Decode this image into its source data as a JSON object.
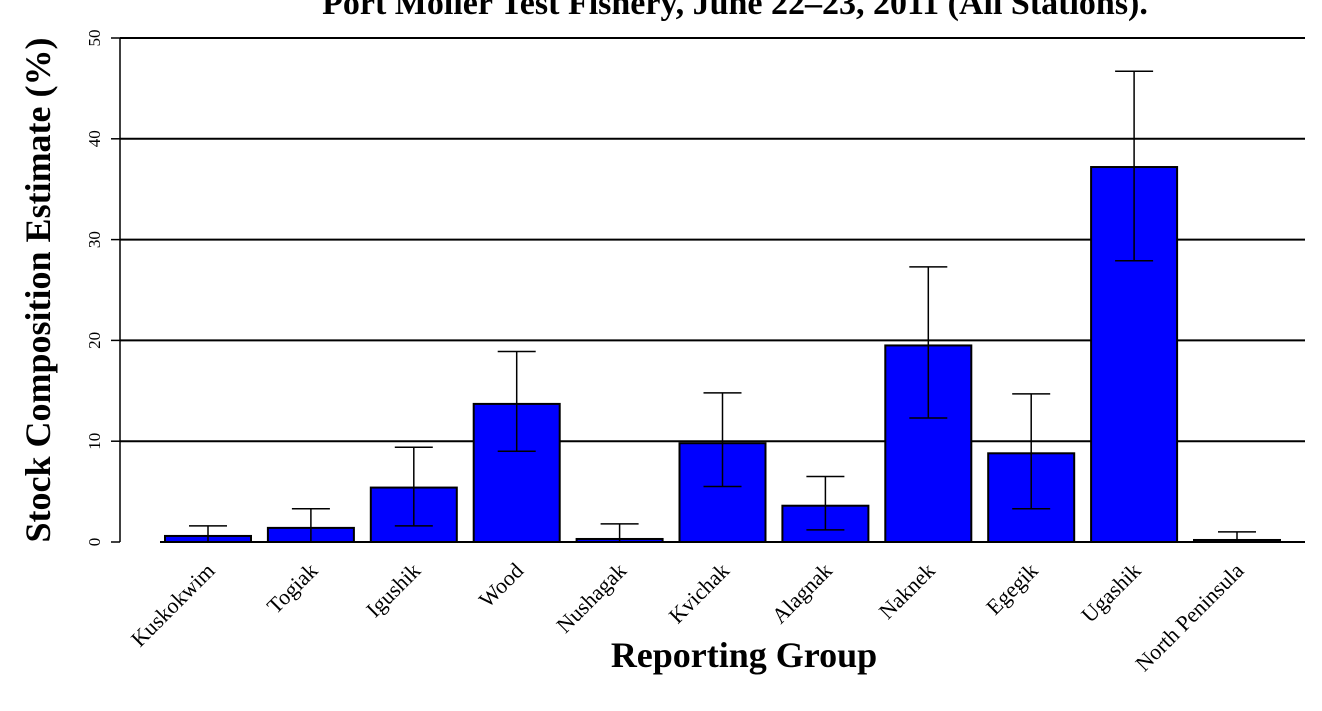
{
  "chart_data": {
    "type": "bar",
    "title": "Port Moller Test Fishery, June 22–23, 2011 (All Stations).",
    "xlabel": "Reporting Group",
    "ylabel": "Stock Composition Estimate (%)",
    "ylim": [
      0,
      50
    ],
    "yticks": [
      "0",
      "10",
      "20",
      "30",
      "40",
      "50"
    ],
    "grid": "horizontal",
    "categories": [
      "Kuskokwim",
      "Togiak",
      "Igushik",
      "Wood",
      "Nushagak",
      "Kvichak",
      "Alagnak",
      "Naknek",
      "Egegik",
      "Ugashik",
      "North Peninsula"
    ],
    "values": [
      0.6,
      1.4,
      5.4,
      13.7,
      0.3,
      9.8,
      3.6,
      19.5,
      8.8,
      37.2,
      0.2
    ],
    "error_lower": [
      0.0,
      0.0,
      1.6,
      9.0,
      0.0,
      5.5,
      1.2,
      12.3,
      3.3,
      27.9,
      0.0
    ],
    "error_upper": [
      1.6,
      3.3,
      9.4,
      18.9,
      1.8,
      14.8,
      6.5,
      27.3,
      14.7,
      46.7,
      1.0
    ]
  },
  "colors": {
    "bar_fill": "#0000ff",
    "bar_stroke": "#000000",
    "grid": "#000000",
    "text": "#000000"
  }
}
